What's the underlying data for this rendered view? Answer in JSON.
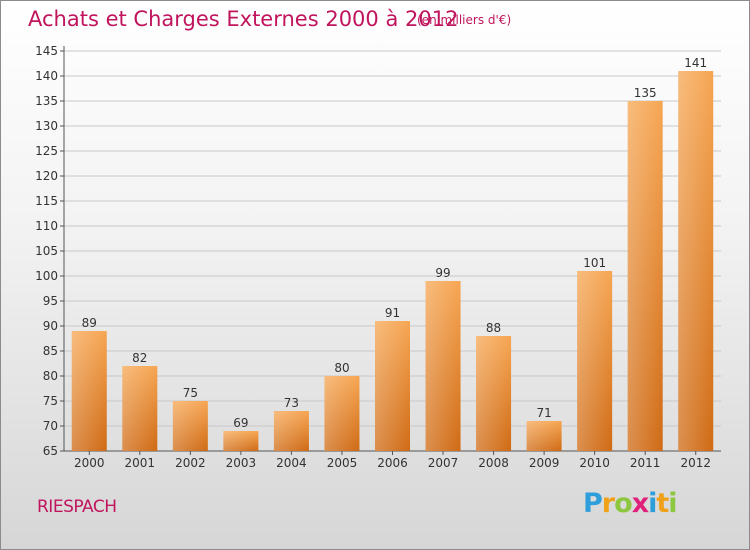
{
  "header": {
    "title": "Achats et Charges Externes 2000 à 2012",
    "unit": "(en milliers d'€)"
  },
  "footer": {
    "commune": "RIESPACH",
    "logo_text": "Proxiti",
    "logo_letters": [
      {
        "ch": "P",
        "color": "#2f9fdc"
      },
      {
        "ch": "r",
        "color": "#f0a11a"
      },
      {
        "ch": "o",
        "color": "#8dc63f"
      },
      {
        "ch": "x",
        "color": "#e0217c"
      },
      {
        "ch": "i",
        "color": "#2f9fdc"
      },
      {
        "ch": "t",
        "color": "#f0a11a"
      },
      {
        "ch": "i",
        "color": "#8dc63f"
      }
    ]
  },
  "colors": {
    "bar_dark": "#cf6a14",
    "bar_light": "#f6a653",
    "grid": "#c8c8c8",
    "title": "#c0155d",
    "text": "#333333"
  },
  "chart_data": {
    "type": "bar",
    "title": "Achats et Charges Externes 2000 à 2012",
    "subtitle": "(en milliers d'€)",
    "categories": [
      "2000",
      "2001",
      "2002",
      "2003",
      "2004",
      "2005",
      "2006",
      "2007",
      "2008",
      "2009",
      "2010",
      "2011",
      "2012"
    ],
    "values": [
      89,
      82,
      75,
      69,
      73,
      80,
      91,
      99,
      88,
      71,
      101,
      135,
      141
    ],
    "ylim": [
      65,
      145
    ],
    "yticks": [
      65,
      70,
      75,
      80,
      85,
      90,
      95,
      100,
      105,
      110,
      115,
      120,
      125,
      130,
      135,
      140,
      145
    ],
    "grid": true,
    "data_labels": true
  }
}
